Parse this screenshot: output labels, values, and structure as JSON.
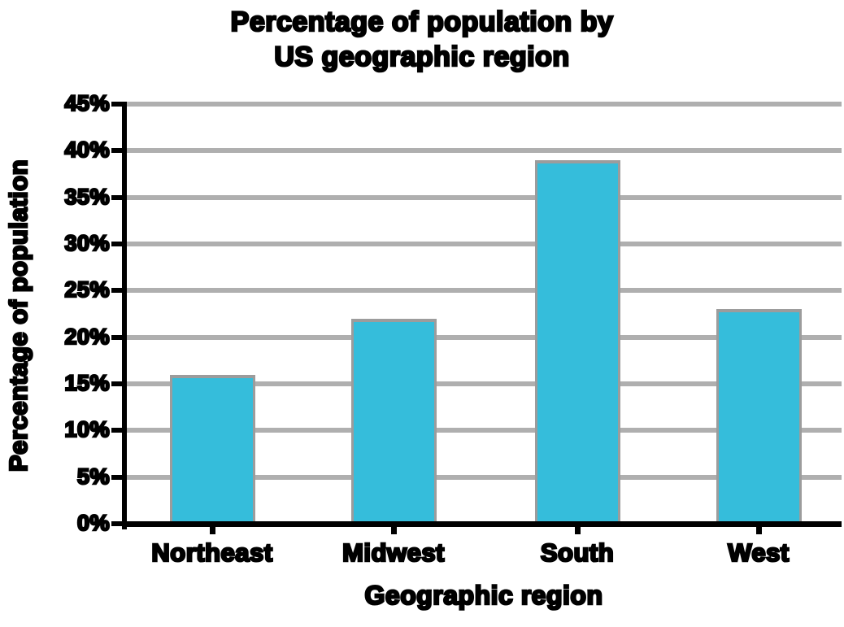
{
  "title": {
    "line1": "Percentage of population by",
    "line2": "US geographic region"
  },
  "x_axis": {
    "label": "Geographic region"
  },
  "y_axis": {
    "label": "Percentage of population"
  },
  "chart_data": {
    "type": "bar",
    "title": "Percentage of population by US geographic region",
    "categories": [
      "Northeast",
      "Midwest",
      "South",
      "West"
    ],
    "values": [
      16,
      22,
      39,
      23
    ],
    "xlabel": "Geographic region",
    "ylabel": "Percentage of population",
    "ylim": [
      0,
      45
    ],
    "ytick_step": 5,
    "ytick_labels": [
      "0%",
      "5%",
      "10%",
      "15%",
      "20%",
      "25%",
      "30%",
      "35%",
      "40%",
      "45%"
    ],
    "grid": true,
    "legend": "none",
    "bar_color": "#35BDDB",
    "bar_border_color": "#9C9C9C",
    "gridline_color": "#AFAFAF",
    "axis_color": "#000000",
    "text_color": "#000000"
  }
}
